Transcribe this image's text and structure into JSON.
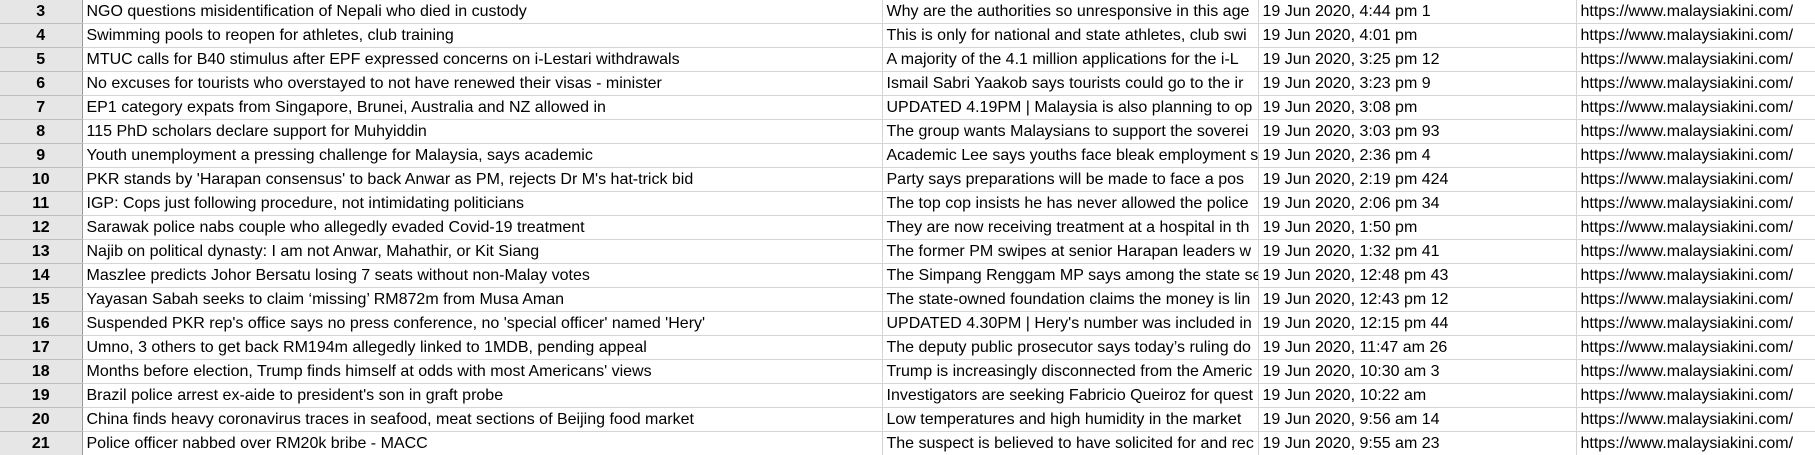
{
  "rows": [
    {
      "num": "3",
      "title": "NGO questions misidentification of Nepali who died in custody",
      "desc": "Why are the authorities so unresponsive in this age",
      "date": "19 Jun 2020, 4:44 pm 1",
      "url": "https://www.malaysiakini.com/"
    },
    {
      "num": "4",
      "title": "Swimming pools to reopen for athletes, club training",
      "desc": "This is only for national and state athletes, club swi",
      "date": "19 Jun 2020, 4:01 pm",
      "url": "https://www.malaysiakini.com/"
    },
    {
      "num": "5",
      "title": "MTUC calls for B40 stimulus after EPF expressed concerns on i-Lestari withdrawals",
      "desc": "A majority of the 4.1 million applications for the i-L",
      "date": "19 Jun 2020, 3:25 pm 12",
      "url": "https://www.malaysiakini.com/"
    },
    {
      "num": "6",
      "title": "No excuses for tourists who overstayed to not have renewed their visas - minister",
      "desc": "Ismail Sabri Yaakob says tourists could go to the ir",
      "date": "19 Jun 2020, 3:23 pm 9",
      "url": "https://www.malaysiakini.com/"
    },
    {
      "num": "7",
      "title": "EP1 category expats from Singapore, Brunei, Australia and NZ allowed in",
      "desc": "UPDATED 4.19PM | Malaysia is also planning to op",
      "date": "19 Jun 2020, 3:08 pm",
      "url": "https://www.malaysiakini.com/"
    },
    {
      "num": "8",
      "title": "115 PhD scholars declare support for Muhyiddin",
      "desc": "The group wants Malaysians to support the soverei",
      "date": "19 Jun 2020, 3:03 pm 93",
      "url": "https://www.malaysiakini.com/"
    },
    {
      "num": "9",
      "title": "Youth unemployment a pressing challenge for Malaysia, says academic",
      "desc": "Academic Lee says youths face bleak employment s",
      "date": "19 Jun 2020, 2:36 pm 4",
      "url": "https://www.malaysiakini.com/"
    },
    {
      "num": "10",
      "title": "PKR stands by 'Harapan consensus' to back Anwar as PM, rejects Dr M's hat-trick bid",
      "desc": "Party says  preparations will be made to face a pos",
      "date": "19 Jun 2020, 2:19 pm 424",
      "url": "https://www.malaysiakini.com/"
    },
    {
      "num": "11",
      "title": "IGP: Cops just following procedure, not intimidating politicians",
      "desc": "The top cop insists he has never allowed the police",
      "date": "19 Jun 2020, 2:06 pm 34",
      "url": "https://www.malaysiakini.com/"
    },
    {
      "num": "12",
      "title": "Sarawak police nabs couple who allegedly evaded Covid-19 treatment",
      "desc": "They are now receiving treatment at a hospital in th",
      "date": "19 Jun 2020, 1:50 pm",
      "url": "https://www.malaysiakini.com/"
    },
    {
      "num": "13",
      "title": "Najib on political dynasty: I am not Anwar, Mahathir, or Kit Siang",
      "desc": "The former PM swipes at senior Harapan leaders w",
      "date": "19 Jun 2020, 1:32 pm 41",
      "url": "https://www.malaysiakini.com/"
    },
    {
      "num": "14",
      "title": "Maszlee predicts Johor Bersatu losing 7 seats without non-Malay votes",
      "desc": "The Simpang Renggam MP says among the state se",
      "date": "19 Jun 2020, 12:48 pm 43",
      "url": "https://www.malaysiakini.com/"
    },
    {
      "num": "15",
      "title": "Yayasan Sabah seeks to claim ‘missing’ RM872m from Musa Aman",
      "desc": "The state-owned foundation claims the money is lin",
      "date": "19 Jun 2020, 12:43 pm 12",
      "url": "https://www.malaysiakini.com/"
    },
    {
      "num": "16",
      "title": "Suspended PKR rep's office says no press conference, no 'special officer' named 'Hery'",
      "desc": "UPDATED 4.30PM | Hery's number was included in",
      "date": "19 Jun 2020, 12:15 pm 44",
      "url": "https://www.malaysiakini.com/"
    },
    {
      "num": "17",
      "title": "Umno, 3 others to get back RM194m allegedly linked to 1MDB, pending appeal",
      "desc": "The deputy public prosecutor says today’s ruling do",
      "date": "19 Jun 2020, 11:47 am 26",
      "url": "https://www.malaysiakini.com/"
    },
    {
      "num": "18",
      "title": "Months before election, Trump finds himself at odds with most Americans' views",
      "desc": "Trump is increasingly disconnected from the Americ",
      "date": "19 Jun 2020, 10:30 am 3",
      "url": "https://www.malaysiakini.com/"
    },
    {
      "num": "19",
      "title": "Brazil police arrest ex-aide to president's son in graft probe",
      "desc": "Investigators are seeking Fabricio Queiroz for quest",
      "date": "19 Jun 2020, 10:22 am",
      "url": "https://www.malaysiakini.com/"
    },
    {
      "num": "20",
      "title": "China finds heavy coronavirus traces in seafood, meat sections of Beijing food market",
      "desc": "Low temperatures and high humidity in the market",
      "date": "19 Jun 2020, 9:56 am 14",
      "url": "https://www.malaysiakini.com/"
    },
    {
      "num": "21",
      "title": "Police officer nabbed over RM20k bribe - MACC",
      "desc": "The suspect is believed to have solicited for and rec",
      "date": "19 Jun 2020, 9:55 am 23",
      "url": "https://www.malaysiakini.com/"
    }
  ]
}
